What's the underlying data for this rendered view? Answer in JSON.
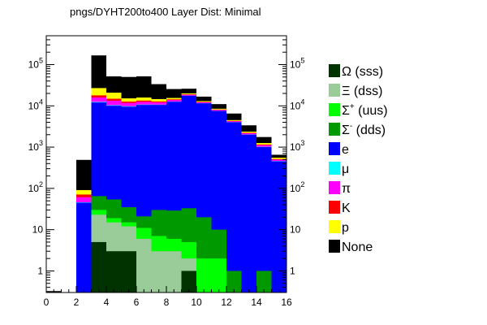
{
  "chart_data": {
    "type": "bar",
    "title": "pngs/DYHT200to400 Layer Dist: Minimal",
    "xlabel": "",
    "ylabel": "",
    "xlim": [
      0,
      16
    ],
    "ylim": [
      0.3,
      500000
    ],
    "yscale": "log",
    "stacked": true,
    "grid": false,
    "legend_position": "right",
    "bin_edges": [
      0,
      1,
      2,
      3,
      4,
      5,
      6,
      7,
      8,
      9,
      10,
      11,
      12,
      13,
      14,
      15,
      16
    ],
    "x_ticks": [
      {
        "value": 0,
        "label": "0"
      },
      {
        "value": 2,
        "label": "2"
      },
      {
        "value": 4,
        "label": "4"
      },
      {
        "value": 6,
        "label": "6"
      },
      {
        "value": 8,
        "label": "8"
      },
      {
        "value": 10,
        "label": "10"
      },
      {
        "value": 12,
        "label": "12"
      },
      {
        "value": 14,
        "label": "14"
      },
      {
        "value": 16,
        "label": "16"
      }
    ],
    "y_ticks": [
      {
        "value": 1,
        "base": "1",
        "exp": ""
      },
      {
        "value": 10,
        "base": "10",
        "exp": ""
      },
      {
        "value": 100,
        "base": "10",
        "exp": "2"
      },
      {
        "value": 1000,
        "base": "10",
        "exp": "3"
      },
      {
        "value": 10000,
        "base": "10",
        "exp": "4"
      },
      {
        "value": 100000,
        "base": "10",
        "exp": "5"
      }
    ],
    "series": [
      {
        "name": "Ω (sss)",
        "sup": "",
        "rest": "",
        "color": "#003300",
        "values": [
          0,
          0,
          0,
          5,
          3,
          3,
          0,
          0,
          0,
          1,
          0,
          0,
          0,
          0,
          0,
          0
        ]
      },
      {
        "name": "Ξ (dss)",
        "sup": "",
        "rest": "",
        "color": "#99cc99",
        "values": [
          0,
          0,
          0,
          18,
          12,
          9,
          6,
          3,
          3,
          1,
          0,
          0,
          0,
          0,
          0,
          0
        ]
      },
      {
        "name": "Σ",
        "sup": "+",
        "rest": " (uus)",
        "color": "#00ff00",
        "values": [
          0,
          0,
          0,
          7,
          4,
          3,
          5,
          4,
          3,
          3,
          2,
          2,
          0,
          0,
          0,
          0
        ]
      },
      {
        "name": "Σ",
        "sup": "-",
        "rest": " (dds)",
        "color": "#009900",
        "values": [
          0,
          0,
          0,
          35,
          35,
          20,
          10,
          23,
          23,
          28,
          18,
          8,
          1,
          0,
          1,
          0
        ]
      },
      {
        "name": "e",
        "sup": "",
        "rest": "",
        "color": "#0000ff",
        "values": [
          0,
          0,
          45,
          12000,
          10000,
          9500,
          10500,
          10500,
          12500,
          17500,
          11500,
          7500,
          4000,
          2000,
          1000,
          450
        ]
      },
      {
        "name": "μ",
        "sup": "",
        "rest": "",
        "color": "#00ffff",
        "values": [
          0,
          0,
          1,
          400,
          300,
          250,
          200,
          150,
          120,
          100,
          80,
          60,
          40,
          25,
          15,
          8
        ]
      },
      {
        "name": "π",
        "sup": "",
        "rest": "",
        "color": "#ff00ff",
        "values": [
          0,
          0,
          15,
          3500,
          3000,
          2000,
          1800,
          1500,
          1200,
          1000,
          600,
          400,
          200,
          150,
          100,
          40
        ]
      },
      {
        "name": "K",
        "sup": "",
        "rest": "",
        "color": "#ff0000",
        "values": [
          0,
          0,
          10,
          2000,
          1500,
          900,
          900,
          600,
          500,
          400,
          250,
          150,
          80,
          50,
          40,
          15
        ]
      },
      {
        "name": "p",
        "sup": "",
        "rest": "",
        "color": "#ffff00",
        "values": [
          0,
          0,
          20,
          9000,
          6000,
          2500,
          2500,
          1800,
          1200,
          1000,
          600,
          400,
          200,
          150,
          100,
          40
        ]
      },
      {
        "name": "None",
        "sup": "",
        "rest": "",
        "color": "#000000",
        "values": [
          0.3,
          0,
          400,
          140000,
          31000,
          35000,
          36000,
          19000,
          10000,
          6000,
          3700,
          2500,
          2000,
          1000,
          500,
          100
        ]
      }
    ]
  }
}
